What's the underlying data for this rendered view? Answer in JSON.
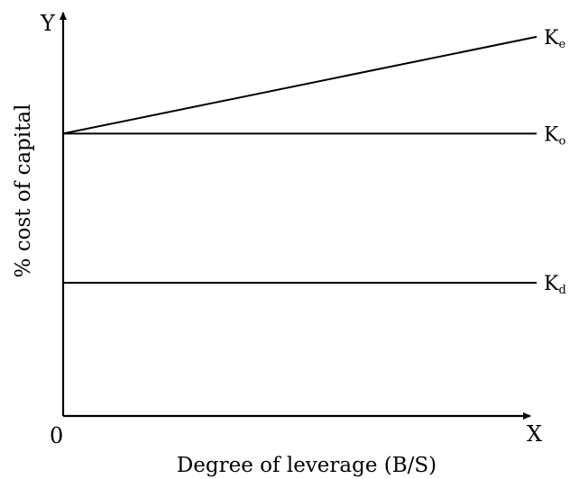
{
  "chart_data": {
    "type": "line",
    "title": "",
    "xlabel": "Degree of leverage (B/S)",
    "ylabel": "% cost of capital",
    "x_axis_letter": "X",
    "y_axis_letter": "Y",
    "origin_label": "0",
    "grid": false,
    "legend": "none",
    "series": [
      {
        "name": "Ke",
        "label_main": "K",
        "label_sub": "e",
        "values": [
          {
            "x": 0,
            "y": 0.7
          },
          {
            "x": 1,
            "y": 0.94
          }
        ]
      },
      {
        "name": "Ko",
        "label_main": "K",
        "label_sub": "o",
        "values": [
          {
            "x": 0,
            "y": 0.7
          },
          {
            "x": 1,
            "y": 0.7
          }
        ]
      },
      {
        "name": "Kd",
        "label_main": "K",
        "label_sub": "d",
        "values": [
          {
            "x": 0,
            "y": 0.33
          },
          {
            "x": 1,
            "y": 0.33
          }
        ]
      }
    ]
  }
}
